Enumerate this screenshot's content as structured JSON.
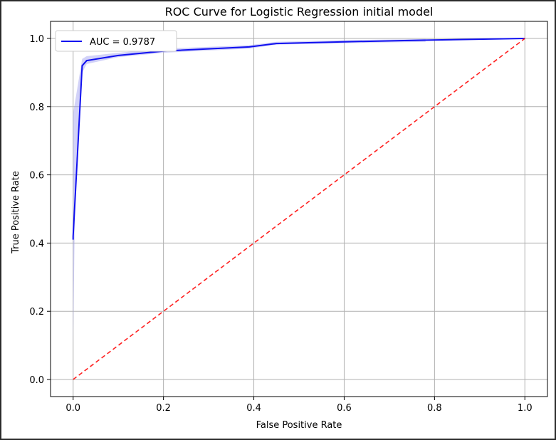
{
  "colors": {
    "roc_line": "#1010f0",
    "band_fill": "#9b9bf0",
    "diagonal": "#ff2020",
    "grid": "#b0b0b0",
    "background": "#ffffff",
    "window_frame": "#2b2b2b"
  },
  "chart_data": {
    "type": "line",
    "title": "ROC Curve for Logistic Regression initial model",
    "xlabel": "False Positive Rate",
    "ylabel": "True Positive Rate",
    "xlim": [
      -0.05,
      1.05
    ],
    "ylim": [
      -0.05,
      1.05
    ],
    "grid": true,
    "legend_position": "top-left",
    "x_ticks": [
      0.0,
      0.2,
      0.4,
      0.6,
      0.8,
      1.0
    ],
    "y_ticks": [
      0.0,
      0.2,
      0.4,
      0.6,
      0.8,
      1.0
    ],
    "x_tick_labels": [
      "0.0",
      "0.2",
      "0.4",
      "0.6",
      "0.8",
      "1.0"
    ],
    "y_tick_labels": [
      "0.0",
      "0.2",
      "0.4",
      "0.6",
      "0.8",
      "1.0"
    ],
    "series": [
      {
        "name": "AUC = 0.9787",
        "style": "solid",
        "x": [
          0.0,
          0.0,
          0.02,
          0.03,
          0.1,
          0.2,
          0.39,
          0.45,
          0.6,
          0.78,
          1.0
        ],
        "y": [
          0.41,
          0.42,
          0.92,
          0.935,
          0.95,
          0.963,
          0.975,
          0.985,
          0.99,
          0.995,
          1.0
        ]
      },
      {
        "style": "dashed",
        "x": [
          0.0,
          1.0
        ],
        "y": [
          0.0,
          1.0
        ]
      }
    ],
    "confidence_band": {
      "x": [
        0.0,
        0.005,
        0.02,
        0.03,
        0.1,
        0.2,
        0.39,
        0.45,
        0.6,
        0.78
      ],
      "y_lower": [
        0.1,
        0.6,
        0.9,
        0.925,
        0.945,
        0.958,
        0.97,
        0.982,
        0.986,
        0.99
      ],
      "y_upper": [
        0.78,
        0.82,
        0.94,
        0.948,
        0.958,
        0.97,
        0.98,
        0.99,
        0.995,
        0.998
      ]
    }
  }
}
